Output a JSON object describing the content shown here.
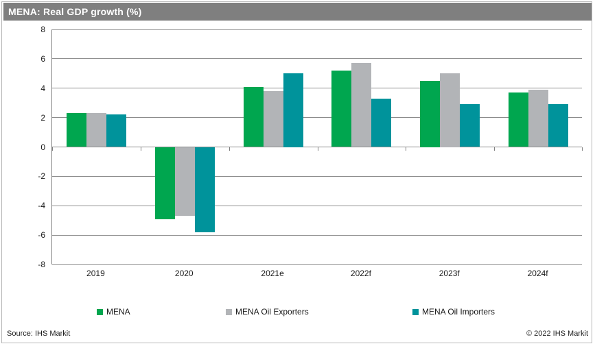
{
  "header": {
    "title": "MENA: Real GDP growth (%)"
  },
  "chart_data": {
    "type": "bar",
    "title": "MENA: Real GDP growth (%)",
    "categories": [
      "2019",
      "2020",
      "2021e",
      "2022f",
      "2023f",
      "2024f"
    ],
    "series": [
      {
        "name": "MENA",
        "color": "#00A64F",
        "values": [
          2.3,
          -4.9,
          4.1,
          5.2,
          4.5,
          3.7
        ]
      },
      {
        "name": "MENA Oil Exporters",
        "color": "#B2B4B7",
        "values": [
          2.3,
          -4.7,
          3.8,
          5.7,
          5.0,
          3.9
        ]
      },
      {
        "name": "MENA Oil Importers",
        "color": "#00939B",
        "values": [
          2.2,
          -5.8,
          5.0,
          3.3,
          2.9,
          2.9
        ]
      }
    ],
    "xlabel": "",
    "ylabel": "",
    "ylim": [
      -8,
      8
    ],
    "ytick_step": 2,
    "yticks": [
      8,
      6,
      4,
      2,
      0,
      -2,
      -4,
      -6,
      -8
    ],
    "grid": true,
    "legend_position": "bottom"
  },
  "footer": {
    "source": "Source:  IHS Markit",
    "copyright": "© 2022  IHS Markit"
  },
  "colors": {
    "title_bar_background": "#7f7f7f",
    "title_text": "#ffffff",
    "gridline": "#8c8c8c",
    "axis_line": "#7f7f7f"
  }
}
